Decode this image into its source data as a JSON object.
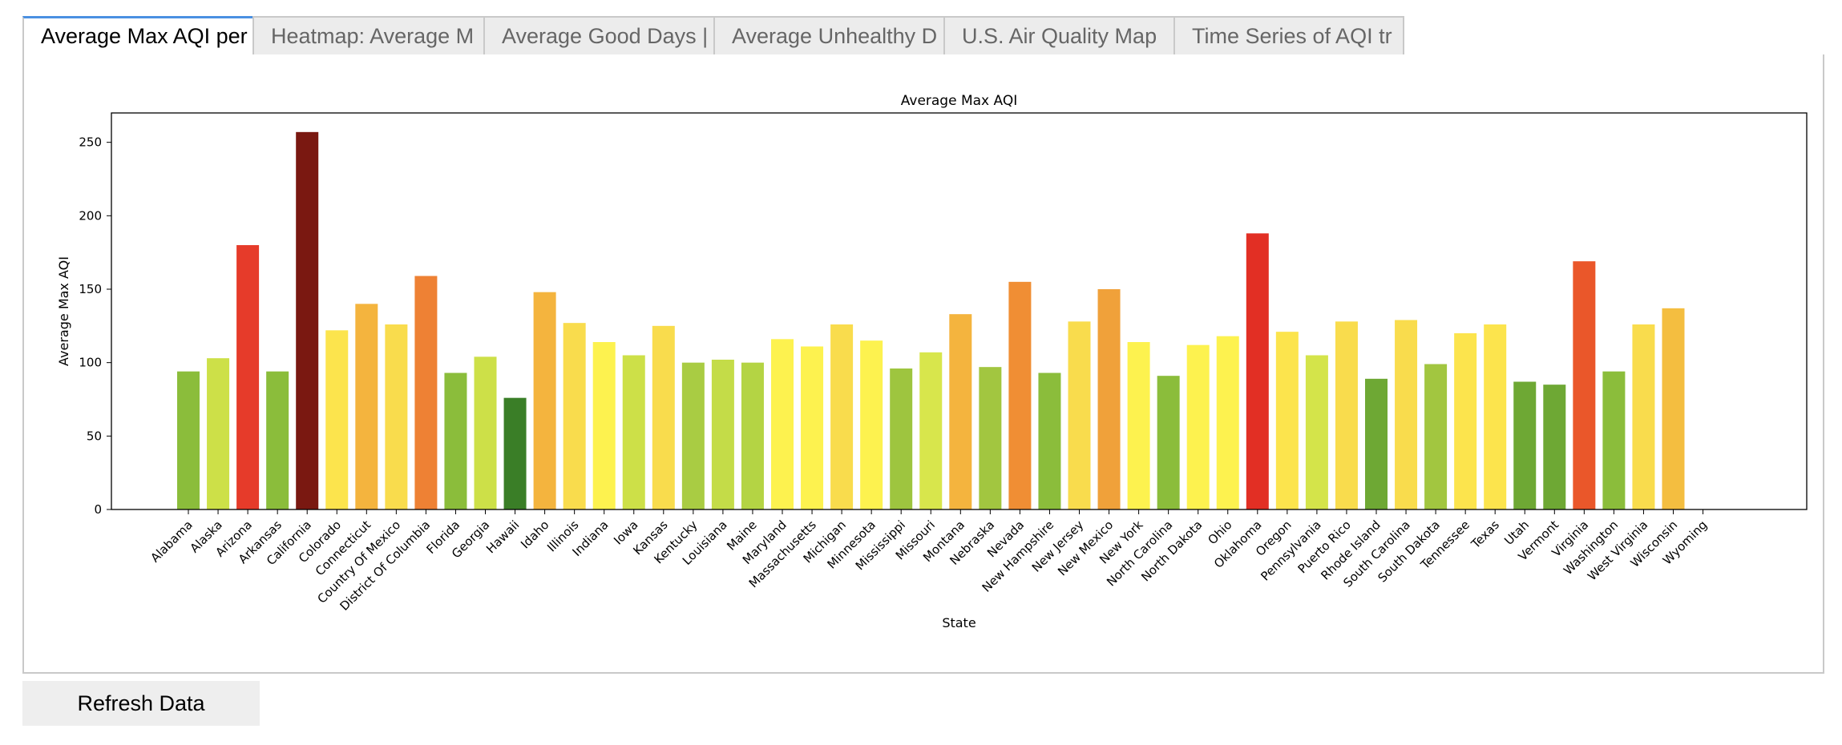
{
  "tabs": [
    {
      "label": "Average Max AQI per",
      "active": true
    },
    {
      "label": "Heatmap: Average M"
    },
    {
      "label": "Average Good Days |"
    },
    {
      "label": "Average Unhealthy D"
    },
    {
      "label": "U.S. Air Quality Map"
    },
    {
      "label": "Time Series of AQI tr"
    }
  ],
  "refresh_label": "Refresh Data",
  "colors": {
    "tab_active_accent": "#4a90e2",
    "tab_bg": "#ececec",
    "button_bg": "#eeeeee"
  },
  "chart_data": {
    "type": "bar",
    "title": "Average Max AQI",
    "xlabel": "State",
    "ylabel": "Average Max AQI",
    "ylim": [
      0,
      270
    ],
    "yticks": [
      0,
      50,
      100,
      150,
      200,
      250
    ],
    "grid": false,
    "categories": [
      "Alabama",
      "Alaska",
      "Arizona",
      "Arkansas",
      "California",
      "Colorado",
      "Connecticut",
      "Country Of Mexico",
      "District Of Columbia",
      "Florida",
      "Georgia",
      "Hawaii",
      "Idaho",
      "Illinois",
      "Indiana",
      "Iowa",
      "Kansas",
      "Kentucky",
      "Louisiana",
      "Maine",
      "Maryland",
      "Massachusetts",
      "Michigan",
      "Minnesota",
      "Mississippi",
      "Missouri",
      "Montana",
      "Nebraska",
      "Nevada",
      "New Hampshire",
      "New Jersey",
      "New Mexico",
      "New York",
      "North Carolina",
      "North Dakota",
      "Ohio",
      "Oklahoma",
      "Oregon",
      "Pennsylvania",
      "Puerto Rico",
      "Rhode Island",
      "South Carolina",
      "South Dakota",
      "Tennessee",
      "Texas",
      "Utah",
      "Vermont",
      "Virginia",
      "Washington",
      "West Virginia",
      "Wisconsin",
      "Wyoming"
    ],
    "values": [
      94,
      103,
      180,
      94,
      257,
      122,
      140,
      126,
      159,
      93,
      104,
      76,
      148,
      127,
      114,
      105,
      125,
      100,
      102,
      100,
      116,
      111,
      126,
      115,
      96,
      107,
      133,
      97,
      155,
      93,
      128,
      150,
      114,
      91,
      112,
      118,
      188,
      121,
      105,
      128,
      89,
      129,
      99,
      120,
      126,
      87,
      85,
      169,
      94,
      126,
      137,
      null
    ],
    "bar_colors": [
      "#8bbd3b",
      "#cde048",
      "#e63b2a",
      "#8bbd3b",
      "#7a1811",
      "#fce44d",
      "#f4b43e",
      "#f9dc4d",
      "#ee8134",
      "#8bbd3b",
      "#cde048",
      "#3a7e27",
      "#f4b43e",
      "#f9dc4d",
      "#fdf24f",
      "#cde048",
      "#f9dc4d",
      "#a9cc43",
      "#c4dc48",
      "#b4d444",
      "#fdf24f",
      "#fdf24f",
      "#f9dc4d",
      "#fdf24f",
      "#9ec53f",
      "#d8e64c",
      "#f4b43e",
      "#a2c640",
      "#f08e34",
      "#8bbd3b",
      "#f9dc4d",
      "#f0a13a",
      "#fdf24f",
      "#8bbd3b",
      "#fdf24f",
      "#fdf24f",
      "#e22f24",
      "#fce44d",
      "#d4e44a",
      "#f9dc4d",
      "#6ea834",
      "#f9dc4d",
      "#a2c640",
      "#fce44d",
      "#fce44d",
      "#6ea834",
      "#6ea834",
      "#ea572a",
      "#8bbd3b",
      "#f9dc4d",
      "#f4be40",
      null
    ]
  }
}
